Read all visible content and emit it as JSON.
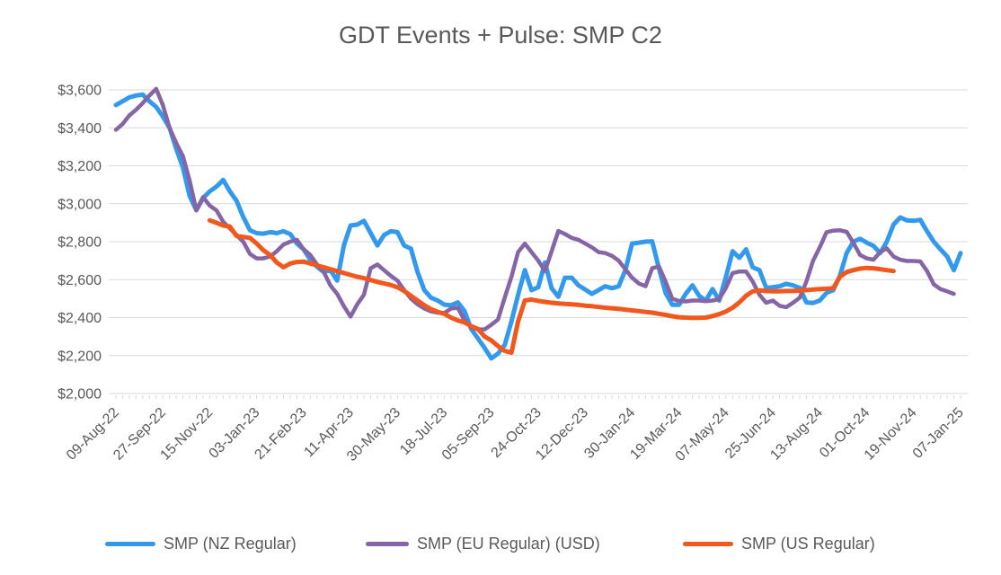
{
  "title": "GDT Events + Pulse: SMP C2",
  "chart_data": {
    "type": "line",
    "title": "GDT Events + Pulse: SMP C2",
    "grid": true,
    "legend_position": "bottom",
    "grid_color": "#D9D9D9",
    "text_color": "#595959",
    "points_total": 127,
    "label_interval": 7,
    "x_tick_labels": [
      "09-Aug-22",
      "27-Sep-22",
      "15-Nov-22",
      "03-Jan-23",
      "21-Feb-23",
      "11-Apr-23",
      "30-May-23",
      "18-Jul-23",
      "05-Sep-23",
      "24-Oct-23",
      "12-Dec-23",
      "30-Jan-24",
      "19-Mar-24",
      "07-May-24",
      "25-Jun-24",
      "13-Aug-24",
      "01-Oct-24",
      "19-Nov-24",
      "07-Jan-25"
    ],
    "y_axis": {
      "min": 2000,
      "max": 3600,
      "step": 200,
      "tick_labels": [
        "$2,000",
        "$2,200",
        "$2,400",
        "$2,600",
        "$2,800",
        "$3,000",
        "$3,200",
        "$3,400",
        "$3,600"
      ]
    },
    "series": [
      {
        "name": "SMP (NZ Regular)",
        "color": "#3399EC",
        "stroke_width": 5,
        "start_index": 0,
        "values": [
          3520,
          3540,
          3560,
          3570,
          3575,
          3540,
          3510,
          3460,
          3400,
          3290,
          3190,
          3040,
          2965,
          3030,
          3065,
          3090,
          3125,
          3065,
          3015,
          2930,
          2860,
          2845,
          2842,
          2850,
          2845,
          2855,
          2840,
          2790,
          2760,
          2705,
          2668,
          2640,
          2650,
          2595,
          2780,
          2885,
          2890,
          2910,
          2845,
          2780,
          2835,
          2855,
          2850,
          2780,
          2763,
          2640,
          2545,
          2505,
          2490,
          2468,
          2465,
          2480,
          2435,
          2340,
          2290,
          2240,
          2185,
          2210,
          2255,
          2380,
          2520,
          2650,
          2545,
          2560,
          2690,
          2555,
          2510,
          2610,
          2610,
          2570,
          2548,
          2525,
          2545,
          2565,
          2555,
          2565,
          2650,
          2790,
          2795,
          2800,
          2802,
          2660,
          2530,
          2467,
          2467,
          2525,
          2570,
          2515,
          2490,
          2550,
          2490,
          2615,
          2750,
          2715,
          2760,
          2665,
          2650,
          2556,
          2560,
          2565,
          2578,
          2570,
          2556,
          2480,
          2477,
          2490,
          2530,
          2545,
          2620,
          2740,
          2800,
          2815,
          2795,
          2778,
          2740,
          2800,
          2890,
          2928,
          2912,
          2910,
          2915,
          2855,
          2800,
          2760,
          2722,
          2650,
          2740
        ]
      },
      {
        "name": "SMP (EU Regular) (USD)",
        "color": "#8565A5",
        "stroke_width": 4.5,
        "start_index": 0,
        "values": [
          3390,
          3420,
          3465,
          3495,
          3530,
          3570,
          3605,
          3520,
          3400,
          3320,
          3250,
          3120,
          2965,
          3035,
          2990,
          2965,
          2905,
          2870,
          2835,
          2800,
          2735,
          2712,
          2712,
          2722,
          2750,
          2785,
          2800,
          2810,
          2760,
          2730,
          2680,
          2640,
          2570,
          2525,
          2460,
          2405,
          2470,
          2520,
          2660,
          2680,
          2650,
          2620,
          2595,
          2545,
          2500,
          2470,
          2448,
          2433,
          2426,
          2424,
          2448,
          2452,
          2386,
          2348,
          2338,
          2338,
          2362,
          2390,
          2505,
          2615,
          2745,
          2790,
          2745,
          2700,
          2645,
          2750,
          2857,
          2840,
          2820,
          2810,
          2790,
          2770,
          2745,
          2740,
          2725,
          2700,
          2655,
          2610,
          2580,
          2565,
          2660,
          2670,
          2590,
          2500,
          2487,
          2485,
          2490,
          2490,
          2486,
          2490,
          2497,
          2557,
          2635,
          2643,
          2643,
          2590,
          2520,
          2478,
          2490,
          2462,
          2455,
          2478,
          2505,
          2590,
          2700,
          2770,
          2850,
          2858,
          2860,
          2852,
          2795,
          2730,
          2712,
          2705,
          2745,
          2765,
          2722,
          2705,
          2698,
          2698,
          2696,
          2645,
          2575,
          2550,
          2538,
          2525
        ]
      },
      {
        "name": "SMP (US Regular)",
        "color": "#F2571E",
        "stroke_width": 5,
        "start_index": 14,
        "values": [
          2912,
          2900,
          2885,
          2880,
          2830,
          2825,
          2820,
          2790,
          2755,
          2730,
          2690,
          2665,
          2685,
          2693,
          2695,
          2685,
          2675,
          2665,
          2655,
          2645,
          2635,
          2625,
          2615,
          2608,
          2598,
          2588,
          2580,
          2572,
          2560,
          2540,
          2515,
          2490,
          2465,
          2445,
          2430,
          2420,
          2400,
          2385,
          2375,
          2355,
          2340,
          2300,
          2280,
          2250,
          2225,
          2215,
          2380,
          2490,
          2495,
          2488,
          2483,
          2478,
          2475,
          2472,
          2470,
          2467,
          2463,
          2460,
          2456,
          2452,
          2449,
          2446,
          2442,
          2438,
          2434,
          2430,
          2426,
          2420,
          2414,
          2407,
          2402,
          2400,
          2399,
          2399,
          2400,
          2408,
          2418,
          2432,
          2452,
          2480,
          2515,
          2538,
          2543,
          2540,
          2538,
          2538,
          2540,
          2540,
          2542,
          2545,
          2548,
          2550,
          2552,
          2555,
          2615,
          2640,
          2650,
          2658,
          2662,
          2660,
          2655,
          2650,
          2645
        ]
      }
    ]
  }
}
